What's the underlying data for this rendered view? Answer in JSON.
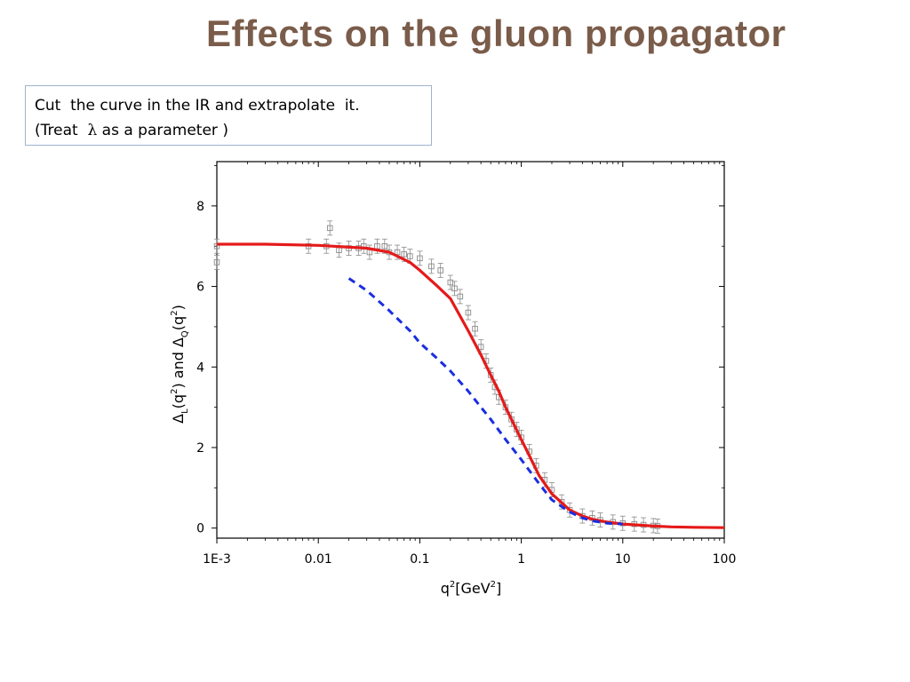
{
  "slide": {
    "title": "Effects on the gluon propagator",
    "note_line1": "Cut  the curve in the IR and extrapolate  it.",
    "note_line2_pre": "(Treat  ",
    "note_lambda": "λ",
    "note_line2_post": " as a parameter )"
  },
  "colors": {
    "title": "#7a5c4a",
    "fit_curve": "#e51a1a",
    "dashed_curve": "#1a2ee0",
    "data_points": "#8a8a8a",
    "note_border": "#9fb4cf"
  },
  "chart_data": {
    "type": "line",
    "x_scale": "log",
    "xlim": [
      0.001,
      100
    ],
    "ylim": [
      -0.25,
      9.1
    ],
    "x_ticks": [
      {
        "value": 0.001,
        "label": "1E-3"
      },
      {
        "value": 0.01,
        "label": "0.01"
      },
      {
        "value": 0.1,
        "label": "0.1"
      },
      {
        "value": 1,
        "label": "1"
      },
      {
        "value": 10,
        "label": "10"
      },
      {
        "value": 100,
        "label": "100"
      }
    ],
    "y_ticks": [
      {
        "value": 0,
        "label": "0"
      },
      {
        "value": 2,
        "label": "2"
      },
      {
        "value": 4,
        "label": "4"
      },
      {
        "value": 6,
        "label": "6"
      },
      {
        "value": 8,
        "label": "8"
      }
    ],
    "xlabel": {
      "base": "q",
      "sup": "2",
      "rest": "[GeV",
      "sup2": "2",
      "end": "]"
    },
    "ylabel": {
      "p1": "Δ",
      "sub1": "L",
      "p2": "(q",
      "sup1": "2",
      "p3": ") and Δ",
      "sub2": "Q",
      "p4": "(q",
      "sup2": "2",
      "p5": ")"
    },
    "series": [
      {
        "style": "solid",
        "color": "#e51a1a",
        "x": [
          0.001,
          0.003,
          0.01,
          0.03,
          0.05,
          0.08,
          0.1,
          0.15,
          0.2,
          0.3,
          0.4,
          0.5,
          0.6,
          0.7,
          0.8,
          1.0,
          1.2,
          1.5,
          2.0,
          3.0,
          4.0,
          5.0,
          7.0,
          10.0,
          20.0,
          30.0,
          50.0,
          100.0
        ],
        "y": [
          7.05,
          7.05,
          7.02,
          6.95,
          6.85,
          6.6,
          6.4,
          6.0,
          5.7,
          4.9,
          4.3,
          3.8,
          3.4,
          3.0,
          2.7,
          2.2,
          1.8,
          1.3,
          0.85,
          0.45,
          0.3,
          0.22,
          0.15,
          0.1,
          0.05,
          0.03,
          0.02,
          0.01
        ]
      },
      {
        "style": "dashed",
        "color": "#1a2ee0",
        "x": [
          0.02,
          0.03,
          0.05,
          0.08,
          0.1,
          0.15,
          0.2,
          0.3,
          0.4,
          0.5,
          0.7,
          1.0,
          1.5,
          2.0,
          3.0,
          4.0,
          5.0,
          7.0,
          10.0
        ],
        "y": [
          6.2,
          5.9,
          5.4,
          4.9,
          4.6,
          4.2,
          3.9,
          3.4,
          3.0,
          2.7,
          2.2,
          1.7,
          1.1,
          0.7,
          0.4,
          0.25,
          0.18,
          0.12,
          0.1
        ]
      },
      {
        "style": "points",
        "color": "#8a8a8a",
        "x": [
          0.001,
          0.001,
          0.008,
          0.012,
          0.013,
          0.016,
          0.02,
          0.025,
          0.028,
          0.032,
          0.038,
          0.045,
          0.05,
          0.06,
          0.07,
          0.08,
          0.1,
          0.13,
          0.16,
          0.2,
          0.22,
          0.25,
          0.3,
          0.35,
          0.4,
          0.45,
          0.5,
          0.55,
          0.6,
          0.7,
          0.8,
          0.9,
          1.0,
          1.2,
          1.4,
          1.7,
          2.0,
          2.5,
          3.0,
          4.0,
          5.0,
          6.0,
          8.0,
          10.0,
          13.0,
          16.0,
          20.0,
          22.0
        ],
        "y": [
          7.0,
          6.6,
          7.0,
          7.0,
          7.45,
          6.9,
          6.95,
          6.95,
          7.0,
          6.85,
          7.0,
          7.0,
          6.85,
          6.85,
          6.8,
          6.75,
          6.7,
          6.5,
          6.4,
          6.1,
          5.95,
          5.75,
          5.35,
          4.95,
          4.5,
          4.15,
          3.8,
          3.5,
          3.25,
          3.0,
          2.7,
          2.45,
          2.25,
          1.9,
          1.55,
          1.2,
          0.95,
          0.65,
          0.45,
          0.3,
          0.25,
          0.2,
          0.15,
          0.12,
          0.1,
          0.08,
          0.06,
          0.05
        ]
      }
    ]
  }
}
